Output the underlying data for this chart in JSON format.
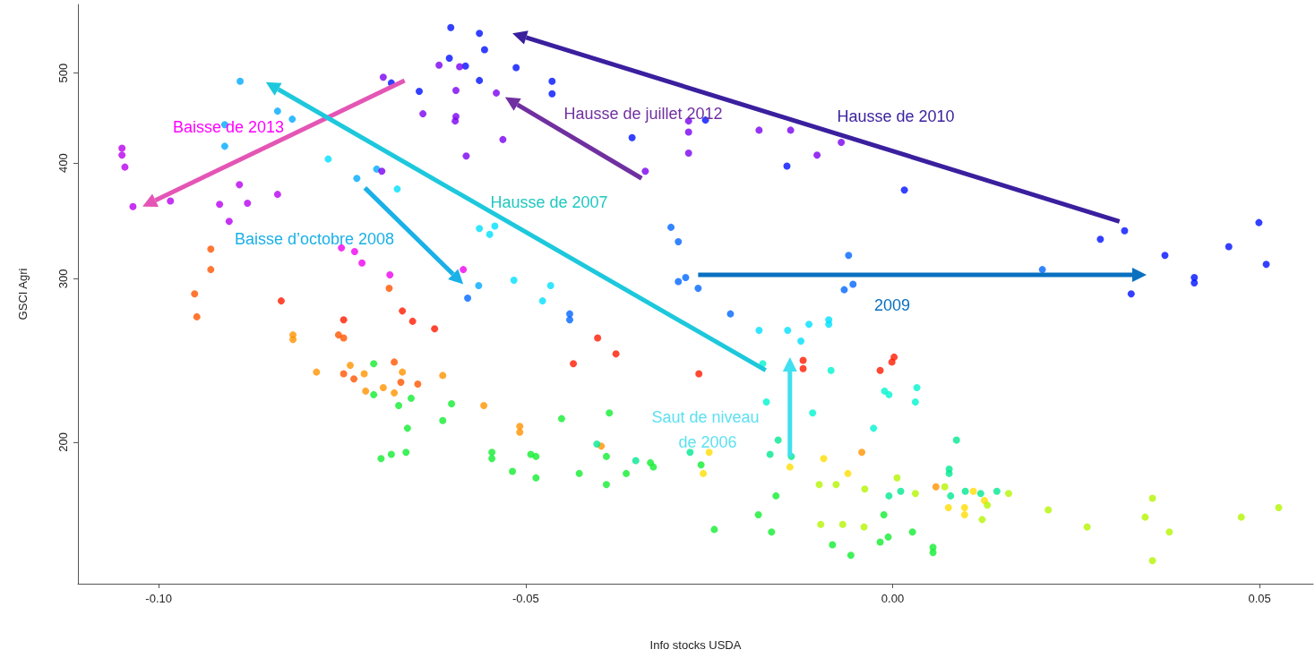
{
  "chart_data": {
    "type": "scatter",
    "xlabel": "Info stocks USDA",
    "ylabel": "GSCI Agri",
    "log": "y",
    "grid": false,
    "marker": "circle",
    "xlim": [
      -0.111,
      0.0573
    ],
    "xticks": [
      {
        "value": -0.1,
        "label": "-0.10"
      },
      {
        "value": -0.05,
        "label": "-0.05"
      },
      {
        "value": 0,
        "label": "0.00"
      },
      {
        "value": 0.05,
        "label": "0.05"
      }
    ],
    "ylim": [
      140.7,
      593
    ],
    "yticks": [
      200,
      300,
      400,
      500
    ],
    "annotations": [
      "Baisse de 2013",
      "Hausse de juillet 2012",
      "Hausse de 2010",
      "Hausse de 2007",
      "Baisse d’octobre 2008",
      "2009",
      "Saut de niveau de 2006"
    ],
    "series": [
      {
        "color": "#ff1a00",
        "x": [
          -0.0833,
          -0.0748,
          -0.0668,
          -0.0654,
          -0.0624,
          -0.0402,
          -0.0377,
          -0.0435,
          -0.0264,
          -0.0122,
          -0.0122,
          -0.0017,
          -0.0001,
          0.0002
        ],
        "values": [
          284,
          271,
          277,
          270,
          265,
          259,
          249,
          243,
          237,
          245,
          240,
          239,
          244,
          247
        ]
      },
      {
        "color": "#ff5500",
        "x": [
          -0.0929,
          -0.0929,
          -0.0951,
          -0.0948,
          -0.0755,
          -0.0748,
          -0.0686,
          -0.0679,
          -0.067,
          -0.0647,
          -0.0734,
          -0.0748
        ],
        "values": [
          323,
          307,
          289,
          273,
          261,
          259,
          293,
          244,
          232,
          231,
          234,
          237
        ]
      },
      {
        "color": "#ff9400",
        "x": [
          -0.0817,
          -0.0817,
          -0.0785,
          -0.0739,
          -0.072,
          -0.0668,
          -0.0613,
          -0.0557,
          -0.0718,
          -0.0694,
          -0.0679,
          -0.0508,
          -0.0508,
          -0.0397,
          -0.0042,
          0.0059
        ],
        "values": [
          261,
          258,
          238,
          242,
          237,
          238,
          236,
          219,
          227,
          229,
          226,
          208,
          205,
          198,
          195,
          179
        ]
      },
      {
        "color": "#ffdd00",
        "x": [
          -0.025,
          -0.0258,
          -0.014,
          -0.0094,
          -0.0061,
          0.011,
          0.0076,
          0.0098,
          0.0098,
          0.0125
        ],
        "values": [
          195,
          185,
          188,
          192,
          185,
          177,
          170,
          170,
          167,
          173
        ]
      },
      {
        "color": "#b4f500",
        "x": [
          -0.01,
          -0.0077,
          -0.0038,
          0.0006,
          -0.0039,
          -0.0068,
          -0.0098,
          0.0031,
          0.0071,
          0.0129,
          0.0158,
          0.0212,
          0.0265,
          0.0122,
          0.0344,
          0.0354,
          0.0377,
          0.0354,
          0.0475,
          0.0526
        ],
        "values": [
          180,
          180,
          178,
          183,
          162,
          163,
          163,
          176,
          179,
          171,
          176,
          169,
          162,
          165,
          166,
          174,
          160,
          149,
          166,
          170
        ]
      },
      {
        "color": "#10ee30",
        "x": [
          -0.0707,
          -0.0707,
          -0.0673,
          -0.0656,
          -0.0661,
          -0.0697,
          -0.0683,
          -0.0663,
          -0.0601,
          -0.0613,
          -0.0546,
          -0.0546,
          -0.0493,
          -0.0486,
          -0.0518,
          -0.0486,
          -0.0451,
          -0.0386,
          -0.039,
          -0.0427,
          -0.039,
          -0.0363,
          -0.033,
          -0.0326,
          -0.0261,
          -0.0243,
          -0.0183,
          -0.0165,
          -0.0159,
          -0.0082,
          -0.0057,
          -0.0017,
          -0.0006,
          -0.0012,
          0.0027,
          0.0055,
          0.0055
        ],
        "values": [
          243,
          225,
          219,
          223,
          207,
          192,
          194,
          195,
          220,
          211,
          195,
          192,
          194,
          193,
          186,
          183,
          212,
          215,
          193,
          185,
          180,
          185,
          190,
          188,
          189,
          161,
          167,
          160,
          175,
          155,
          151,
          156,
          158,
          167,
          160,
          154,
          152
        ]
      },
      {
        "color": "#00e890",
        "x": [
          -0.035,
          -0.0403,
          -0.0276,
          -0.0156,
          -0.0167,
          -0.0138,
          0.0011,
          -0.0005,
          0.0087,
          0.0077,
          0.0077,
          0.0079,
          0.0099,
          0.012,
          0.0142
        ],
        "values": [
          191,
          199,
          195,
          201,
          194,
          193,
          177,
          175,
          201,
          187,
          185,
          175,
          177,
          176,
          177
        ]
      },
      {
        "color": "#00f5d0",
        "x": [
          -0.0172,
          -0.0109,
          -0.0026,
          -0.0011,
          -0.0005,
          -0.0084,
          -0.0177,
          0.0033,
          0.0031
        ],
        "values": [
          221,
          215,
          207,
          227,
          225,
          239,
          243,
          229,
          221
        ]
      },
      {
        "color": "#00e0ff",
        "x": [
          -0.0182,
          -0.0143,
          -0.0125,
          -0.0114,
          -0.0087,
          -0.0087,
          -0.0477,
          -0.0516,
          -0.0466,
          -0.0542,
          -0.0563,
          -0.0549,
          -0.0675,
          -0.0769
        ],
        "values": [
          264,
          264,
          257,
          268,
          271,
          268,
          284,
          299,
          295,
          342,
          340,
          335,
          375,
          404
        ]
      },
      {
        "color": "#00aaff",
        "x": [
          -0.0889,
          -0.0838,
          -0.0818,
          -0.091,
          -0.091,
          -0.0703,
          -0.073,
          -0.0564
        ],
        "values": [
          490,
          455,
          446,
          440,
          417,
          394,
          385,
          295
        ]
      },
      {
        "color": "#0066ff",
        "x": [
          -0.0579,
          -0.044,
          -0.044,
          -0.0221,
          -0.0302,
          -0.0292,
          -0.0292,
          -0.0282,
          -0.0265,
          -0.006,
          -0.0066,
          -0.0054,
          0.0204
        ],
        "values": [
          286,
          275,
          271,
          275,
          341,
          329,
          298,
          301,
          293,
          318,
          292,
          296,
          307
        ]
      },
      {
        "color": "#0010ff",
        "x": [
          -0.0602,
          -0.0563,
          -0.0556,
          -0.0604,
          -0.0582,
          -0.0563,
          -0.0645,
          -0.0683,
          -0.0513,
          -0.0464,
          -0.0464,
          -0.0355,
          -0.0255,
          -0.0144,
          0.0016,
          0.0283,
          0.0316,
          0.0371,
          0.0458,
          0.0499,
          0.0509,
          0.0411,
          0.0411,
          0.0325
        ],
        "values": [
          560,
          552,
          530,
          519,
          509,
          491,
          478,
          488,
          507,
          490,
          475,
          426,
          445,
          397,
          374,
          331,
          338,
          318,
          325,
          345,
          311,
          301,
          297,
          289
        ]
      },
      {
        "color": "#7a00f0",
        "x": [
          -0.0618,
          -0.059,
          -0.0694,
          -0.0595,
          -0.064,
          -0.0595,
          -0.0596,
          -0.0581,
          -0.0696,
          -0.0531,
          -0.0278,
          -0.0278,
          -0.0278,
          -0.0182,
          -0.0139,
          -0.0103,
          -0.007,
          -0.054,
          -0.0337
        ],
        "values": [
          510,
          508,
          495,
          479,
          452,
          449,
          444,
          407,
          392,
          424,
          444,
          432,
          410,
          434,
          434,
          408,
          421,
          476,
          392
        ]
      },
      {
        "color": "#b800f0",
        "x": [
          -0.105,
          -0.105,
          -0.1046,
          -0.1035,
          -0.0984,
          -0.0917,
          -0.0879,
          -0.089,
          -0.0838,
          -0.0904
        ],
        "values": [
          415,
          408,
          396,
          359,
          364,
          361,
          362,
          379,
          370,
          346
        ]
      },
      {
        "color": "#f000f0",
        "x": [
          -0.0751,
          -0.0733,
          -0.0723,
          -0.0685,
          -0.0585
        ],
        "values": [
          324,
          321,
          312,
          303,
          307
        ]
      }
    ]
  }
}
